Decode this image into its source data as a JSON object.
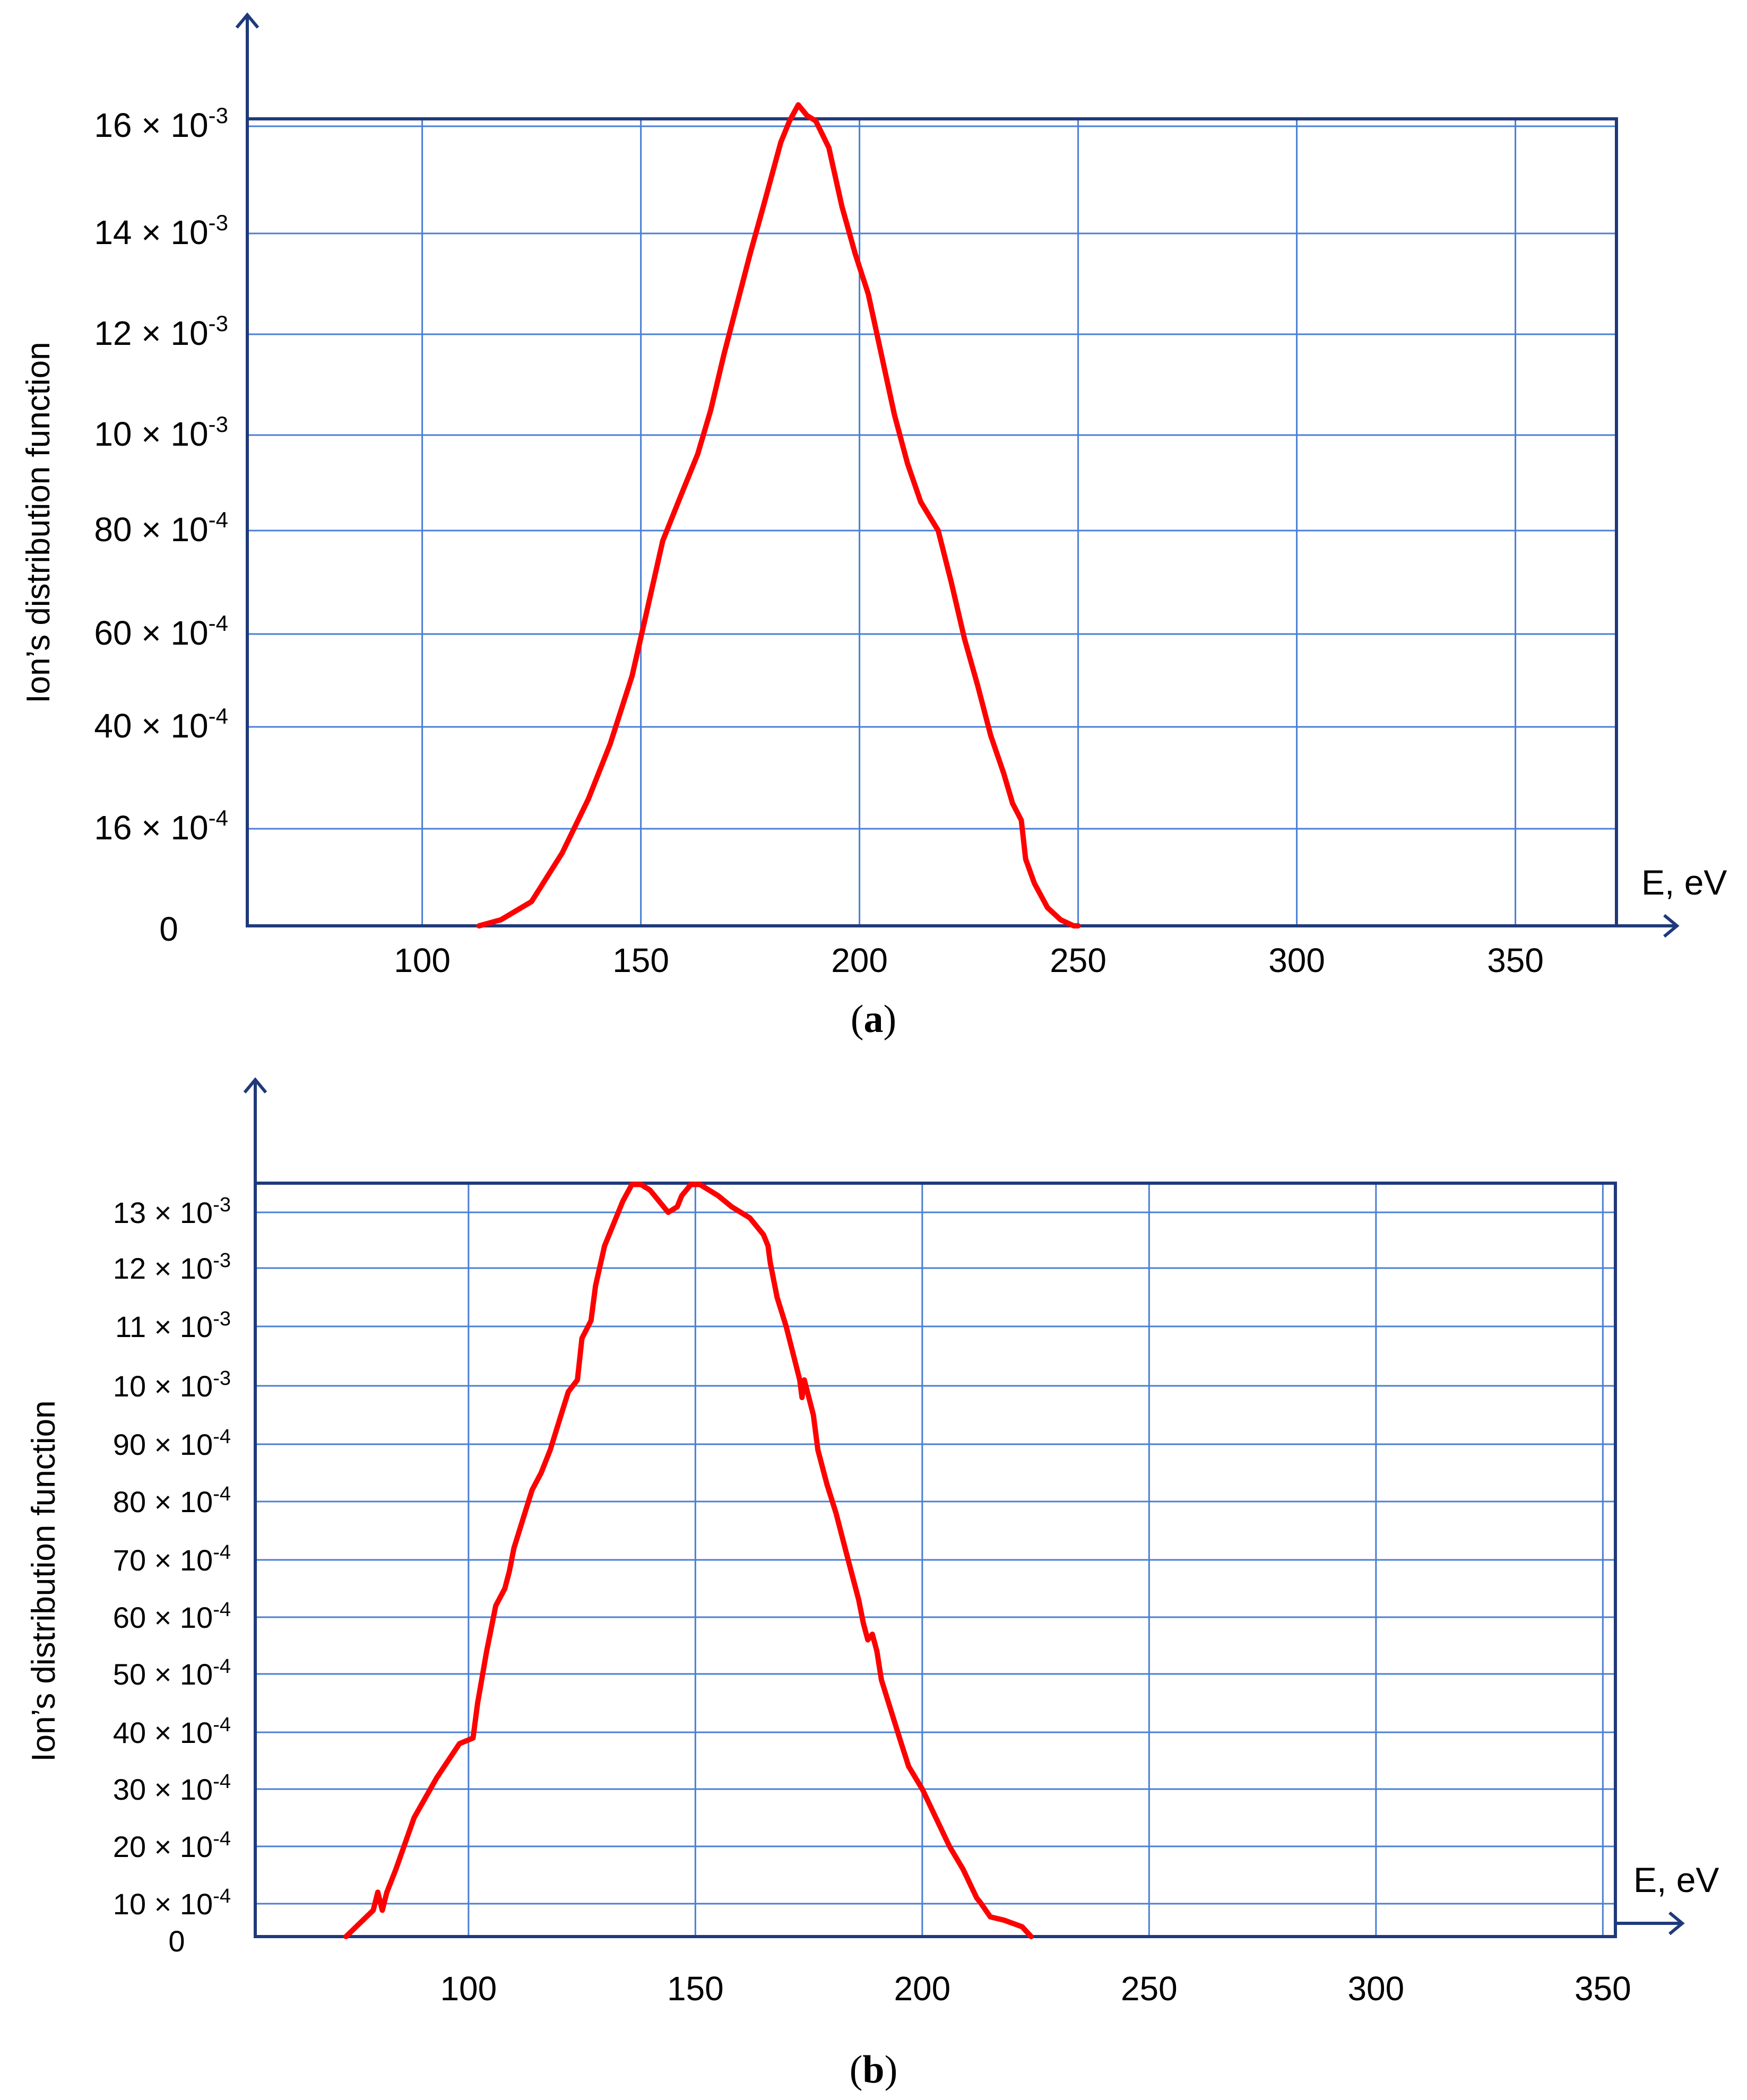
{
  "colors": {
    "axis": "#1F3A7A",
    "grid": "#4A7FD4",
    "curve": "#FF0000",
    "text": "#000000"
  },
  "chart_data": [
    {
      "panel": "a",
      "caption": "a",
      "type": "line",
      "ylabel": "Ion’s distribution function",
      "xlabel": "E, eV",
      "grid": true,
      "xlim": [
        50,
        370
      ],
      "x_ticks": [
        100,
        150,
        200,
        250,
        300,
        350
      ],
      "x_tick_labels": [
        "100",
        "150",
        "200",
        "250",
        "300",
        "350"
      ],
      "y_ticks": [
        {
          "mant": "",
          "exp": "",
          "text": "0",
          "value": 0
        },
        {
          "mant": "16 × 10",
          "exp": "-4",
          "value": 0.0016
        },
        {
          "mant": "40 × 10",
          "exp": "-4",
          "value": 0.004
        },
        {
          "mant": "60 × 10",
          "exp": "-4",
          "value": 0.006
        },
        {
          "mant": "80 × 10",
          "exp": "-4",
          "value": 0.008
        },
        {
          "mant": "10 × 10",
          "exp": "-3",
          "value": 0.01
        },
        {
          "mant": "12 × 10",
          "exp": "-3",
          "value": 0.012
        },
        {
          "mant": "14 × 10",
          "exp": "-3",
          "value": 0.014
        },
        {
          "mant": "16 × 10",
          "exp": "-3",
          "value": 0.016
        }
      ],
      "series": [
        {
          "x": [
            113,
            118,
            125,
            132,
            138,
            143,
            148,
            151,
            155,
            159,
            163,
            166,
            169,
            172,
            175,
            178,
            180,
            182,
            184,
            186,
            188,
            190,
            193,
            196,
            199,
            202,
            205,
            208,
            211,
            214,
            216,
            218,
            221,
            224,
            227,
            230,
            233,
            235,
            237,
            238,
            240,
            243,
            246,
            249,
            250
          ],
          "y": [
            0,
            0.0001,
            0.0004,
            0.0012,
            0.0023,
            0.0036,
            0.0051,
            0.0063,
            0.0078,
            0.0087,
            0.0096,
            0.0105,
            0.0116,
            0.0126,
            0.0136,
            0.0145,
            0.0151,
            0.0157,
            0.0161,
            0.0164,
            0.0162,
            0.0161,
            0.0156,
            0.0145,
            0.0136,
            0.0128,
            0.0116,
            0.0104,
            0.0094,
            0.0086,
            0.0083,
            0.008,
            0.007,
            0.0059,
            0.0049,
            0.0038,
            0.0029,
            0.0022,
            0.0018,
            0.0011,
            0.0007,
            0.0003,
            0.0001,
            0,
            0
          ]
        }
      ]
    },
    {
      "panel": "b",
      "caption": "b",
      "type": "line",
      "ylabel": "Ion’s distribution function",
      "xlabel": "E, eV",
      "grid": true,
      "xlim": [
        53,
        355
      ],
      "x_ticks": [
        100,
        150,
        200,
        250,
        300,
        350
      ],
      "x_tick_labels": [
        "100",
        "150",
        "200",
        "250",
        "300",
        "350"
      ],
      "y_ticks": [
        {
          "mant": "",
          "exp": "",
          "text": "0",
          "value": 0
        },
        {
          "mant": "10 × 10",
          "exp": "-4",
          "value": 0.001
        },
        {
          "mant": "20 × 10",
          "exp": "-4",
          "value": 0.002
        },
        {
          "mant": "30 × 10",
          "exp": "-4",
          "value": 0.003
        },
        {
          "mant": "40 × 10",
          "exp": "-4",
          "value": 0.004
        },
        {
          "mant": "50 × 10",
          "exp": "-4",
          "value": 0.005
        },
        {
          "mant": "60 × 10",
          "exp": "-4",
          "value": 0.006
        },
        {
          "mant": "70 × 10",
          "exp": "-4",
          "value": 0.007
        },
        {
          "mant": "80 × 10",
          "exp": "-4",
          "value": 0.008
        },
        {
          "mant": "90 × 10",
          "exp": "-4",
          "value": 0.009
        },
        {
          "mant": "10 × 10",
          "exp": "-3",
          "value": 0.01
        },
        {
          "mant": "11 × 10",
          "exp": "-3",
          "value": 0.011
        },
        {
          "mant": "12 × 10",
          "exp": "-3",
          "value": 0.012
        },
        {
          "mant": "13 × 10",
          "exp": "-3",
          "value": 0.013
        }
      ],
      "series": [
        {
          "x": [
            73,
            76,
            79,
            80,
            81,
            82,
            84,
            88,
            93,
            98,
            101,
            102,
            104,
            106,
            108,
            109,
            110,
            112,
            114,
            116,
            118,
            120,
            122,
            124,
            125,
            127,
            128,
            130,
            132,
            134,
            136,
            138,
            140,
            142,
            144,
            146,
            147,
            148,
            149,
            151,
            153,
            155,
            158,
            162,
            165,
            166,
            166.5,
            168,
            170,
            172,
            173,
            173.5,
            174,
            176,
            177,
            179,
            181,
            183,
            185,
            186,
            187,
            188,
            189,
            190,
            191,
            193,
            195,
            197,
            200,
            203,
            206,
            209,
            212,
            213,
            215,
            218,
            220,
            222,
            224
          ],
          "y": [
            0,
            0.0004,
            0.0008,
            0.0012,
            0.0008,
            0.0012,
            0.0016,
            0.0025,
            0.0032,
            0.0038,
            0.0039,
            0.0045,
            0.0054,
            0.0062,
            0.0065,
            0.0068,
            0.0072,
            0.0077,
            0.0082,
            0.0085,
            0.0089,
            0.0094,
            0.0099,
            0.0101,
            0.0108,
            0.0111,
            0.0117,
            0.0124,
            0.0128,
            0.0132,
            0.0135,
            0.0135,
            0.0134,
            0.0132,
            0.013,
            0.0131,
            0.0133,
            0.0134,
            0.0135,
            0.0135,
            0.0134,
            0.0133,
            0.0131,
            0.0129,
            0.0126,
            0.0124,
            0.0121,
            0.0115,
            0.011,
            0.0104,
            0.0101,
            0.0098,
            0.0101,
            0.0095,
            0.0089,
            0.0083,
            0.0078,
            0.0072,
            0.0066,
            0.0063,
            0.0059,
            0.0056,
            0.0057,
            0.0054,
            0.0049,
            0.0044,
            0.0039,
            0.0034,
            0.003,
            0.0025,
            0.002,
            0.0016,
            0.0011,
            0.001,
            0.0006,
            0.0005,
            0.0004,
            0.0003,
            0
          ]
        }
      ]
    }
  ]
}
